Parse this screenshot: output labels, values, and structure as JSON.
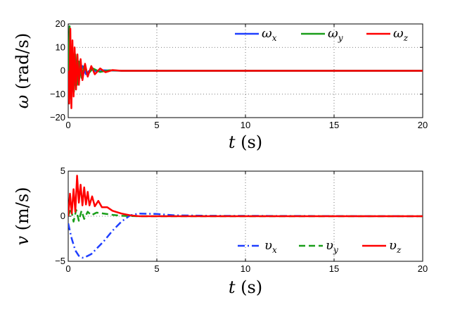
{
  "chart_data": [
    {
      "type": "line",
      "xlabel": {
        "var": "t",
        "unit": "(s)"
      },
      "ylabel": {
        "var": "ω",
        "unit": "(rad/s)"
      },
      "xlim": [
        0,
        20
      ],
      "ylim": [
        -20,
        20
      ],
      "xticks": [
        "0",
        "5",
        "10",
        "15",
        "20"
      ],
      "yticks": [
        "20",
        "10",
        "0",
        "−10",
        "−20"
      ],
      "grid": true,
      "legend_position": "top-right",
      "series": [
        {
          "name": "ω",
          "sub": "x",
          "color": "#1f3fff",
          "style": "solid",
          "x": [
            0,
            0.1,
            0.2,
            0.3,
            0.4,
            0.5,
            0.6,
            0.8,
            1.0,
            1.3,
            1.6,
            2.0,
            2.5,
            3.0,
            20
          ],
          "y": [
            0,
            8,
            -9,
            6,
            -6,
            4,
            -3,
            2,
            -1.5,
            0.8,
            -0.4,
            0.2,
            0.1,
            0,
            0
          ]
        },
        {
          "name": "ω",
          "sub": "y",
          "color": "#1a9e1a",
          "style": "solid",
          "x": [
            0,
            0.08,
            0.16,
            0.24,
            0.32,
            0.4,
            0.5,
            0.6,
            0.75,
            0.9,
            1.1,
            1.4,
            1.8,
            2.3,
            3.0,
            20
          ],
          "y": [
            0,
            19,
            -12,
            10,
            -9,
            7,
            -6,
            4,
            -3,
            2,
            -1.5,
            1,
            -0.5,
            0.2,
            0,
            0
          ]
        },
        {
          "name": "ω",
          "sub": "z",
          "color": "#ff0000",
          "style": "solid",
          "x": [
            0,
            0.06,
            0.12,
            0.18,
            0.24,
            0.3,
            0.36,
            0.44,
            0.52,
            0.6,
            0.7,
            0.8,
            0.95,
            1.1,
            1.3,
            1.5,
            1.8,
            2.1,
            2.5,
            3.0,
            20
          ],
          "y": [
            0,
            -14,
            18,
            -16,
            13,
            -11,
            10,
            -8,
            7,
            -6,
            5,
            -4,
            3,
            -2.5,
            2,
            -1.5,
            1,
            -0.6,
            0.3,
            0,
            0
          ]
        }
      ]
    },
    {
      "type": "line",
      "xlabel": {
        "var": "t",
        "unit": "(s)"
      },
      "ylabel": {
        "var": "v",
        "unit": "(m/s)"
      },
      "xlim": [
        0,
        20
      ],
      "ylim": [
        -5,
        5
      ],
      "xticks": [
        "0",
        "5",
        "10",
        "15",
        "20"
      ],
      "yticks": [
        "5",
        "0",
        "−5"
      ],
      "grid": true,
      "legend_position": "bottom-right",
      "series": [
        {
          "name": "υ",
          "sub": "x",
          "color": "#1f3fff",
          "style": "dashdot",
          "x": [
            0,
            0.2,
            0.4,
            0.6,
            0.8,
            1.0,
            1.3,
            1.6,
            2.0,
            2.5,
            3.0,
            3.5,
            4.0,
            5.0,
            6.0,
            8.0,
            20
          ],
          "y": [
            -0.8,
            -2.5,
            -3.8,
            -4.4,
            -4.6,
            -4.5,
            -4.2,
            -3.6,
            -2.8,
            -1.6,
            -0.6,
            0.1,
            0.3,
            0.25,
            0.1,
            0.05,
            0
          ]
        },
        {
          "name": "υ",
          "sub": "y",
          "color": "#1a9e1a",
          "style": "dashed",
          "x": [
            0,
            0.15,
            0.3,
            0.45,
            0.6,
            0.75,
            0.9,
            1.1,
            1.3,
            1.6,
            2.0,
            2.5,
            3.0,
            4.0,
            6.0,
            20
          ],
          "y": [
            0,
            0.9,
            -0.6,
            0.7,
            -0.5,
            0.6,
            -0.3,
            0.5,
            0.1,
            0.4,
            0.3,
            0.15,
            0.05,
            0,
            0,
            0
          ]
        },
        {
          "name": "υ",
          "sub": "z",
          "color": "#ff0000",
          "style": "solid",
          "x": [
            0,
            0.1,
            0.2,
            0.3,
            0.4,
            0.5,
            0.6,
            0.7,
            0.8,
            0.9,
            1.0,
            1.1,
            1.2,
            1.35,
            1.5,
            1.7,
            1.9,
            2.2,
            2.5,
            3.0,
            3.5,
            4.0,
            20
          ],
          "y": [
            0,
            2.5,
            0.3,
            3.0,
            0.5,
            4.5,
            1.5,
            3.5,
            1.2,
            3.2,
            1.3,
            2.7,
            1.2,
            2.2,
            1.1,
            1.7,
            1.0,
            1.0,
            0.6,
            0.3,
            0.1,
            0,
            0
          ]
        }
      ]
    }
  ]
}
